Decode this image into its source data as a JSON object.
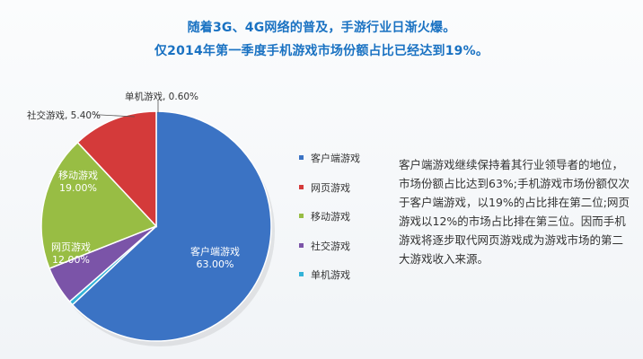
{
  "headline": {
    "line1": "随着3G、4G网络的普及，手游行业日渐火爆。",
    "line2": "仅2014年第一季度手机游戏市场份额占比已经达到19%。"
  },
  "chart_data": {
    "type": "pie",
    "slices": [
      {
        "name": "客户端游戏",
        "value": 63.0,
        "label": "63.00%",
        "color": "#3b73c4"
      },
      {
        "name": "单机游戏",
        "value": 0.6,
        "label": "0.60%",
        "color": "#33b3d8"
      },
      {
        "name": "社交游戏",
        "value": 5.4,
        "label": "5.40%",
        "color": "#7b54a8"
      },
      {
        "name": "移动游戏",
        "value": 19.0,
        "label": "19.00%",
        "color": "#98bd44"
      },
      {
        "name": "网页游戏",
        "value": 12.0,
        "label": "12.00%",
        "color": "#d43a3a"
      }
    ],
    "callouts": {
      "standalone": "单机游戏, 0.60%",
      "social": "社交游戏, 5.40%"
    },
    "legend": [
      {
        "label": "客户端游戏",
        "color": "#3b73c4"
      },
      {
        "label": "网页游戏",
        "color": "#d43a3a"
      },
      {
        "label": "移动游戏",
        "color": "#98bd44"
      },
      {
        "label": "社交游戏",
        "color": "#7b54a8"
      },
      {
        "label": "单机游戏",
        "color": "#33b3d8"
      }
    ],
    "legend_position": "right"
  },
  "summary": {
    "lines": [
      "客户端游戏继续保持着其行业领导者的地位，",
      "市场份额占比达到63%;手机游戏市场份额仅次",
      "于客户端游戏，以19%的占比排在第二位;网页",
      "游戏以12%的市场占比排在第三位。因而手机",
      "游戏将逐步取代网页游戏成为游戏市场的第二",
      "大游戏收入来源。"
    ]
  }
}
